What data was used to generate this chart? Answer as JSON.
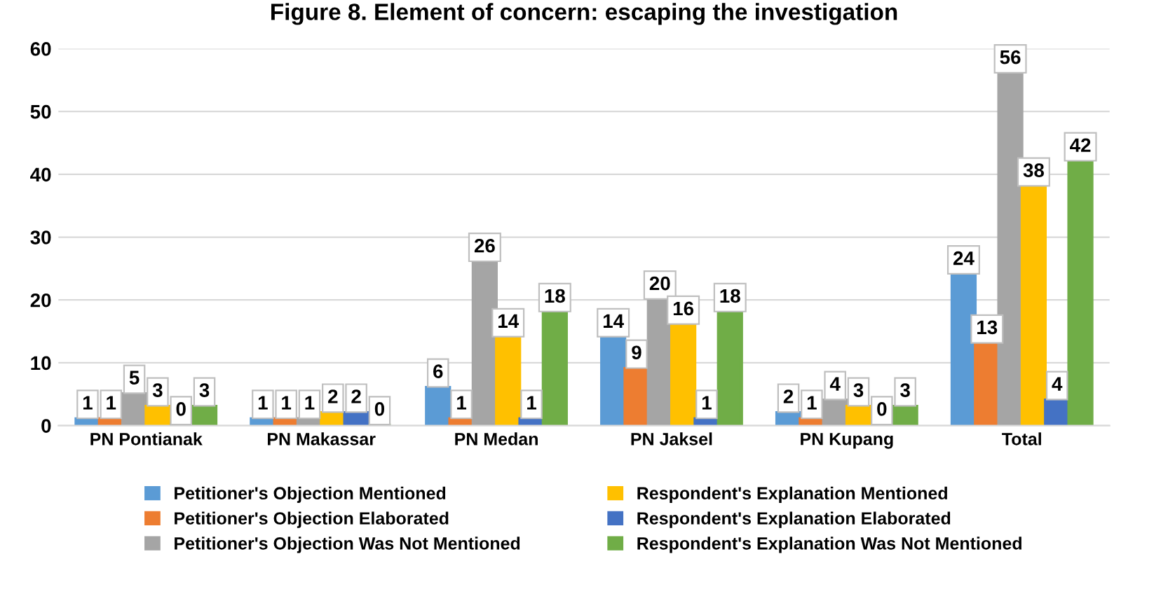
{
  "chart_data": {
    "type": "bar",
    "title": "Figure 8. Element of concern: escaping the investigation",
    "categories": [
      "PN Pontianak",
      "PN Makassar",
      "PN Medan",
      "PN Jaksel",
      "PN Kupang",
      "Total"
    ],
    "series": [
      {
        "name": "Petitioner's Objection Mentioned",
        "color": "#5b9bd5",
        "values": [
          1,
          1,
          6,
          14,
          2,
          24
        ]
      },
      {
        "name": "Petitioner's Objection Elaborated",
        "color": "#ed7d31",
        "values": [
          1,
          1,
          1,
          9,
          1,
          13
        ]
      },
      {
        "name": "Petitioner's Objection Was Not Mentioned",
        "color": "#a5a5a5",
        "values": [
          5,
          1,
          26,
          20,
          4,
          56
        ]
      },
      {
        "name": "Respondent's Explanation Mentioned",
        "color": "#ffc000",
        "values": [
          3,
          2,
          14,
          16,
          3,
          38
        ]
      },
      {
        "name": "Respondent's Explanation Elaborated",
        "color": "#4472c4",
        "values": [
          0,
          2,
          1,
          1,
          0,
          4
        ]
      },
      {
        "name": "Respondent's Explanation Was Not Mentioned",
        "color": "#70ad47",
        "values": [
          3,
          0,
          18,
          18,
          3,
          42
        ]
      }
    ],
    "ylim": [
      0,
      60
    ],
    "yticks": [
      0,
      10,
      20,
      30,
      40,
      50,
      60
    ],
    "grid": "y",
    "legend": "bottom",
    "data_labels": true
  }
}
